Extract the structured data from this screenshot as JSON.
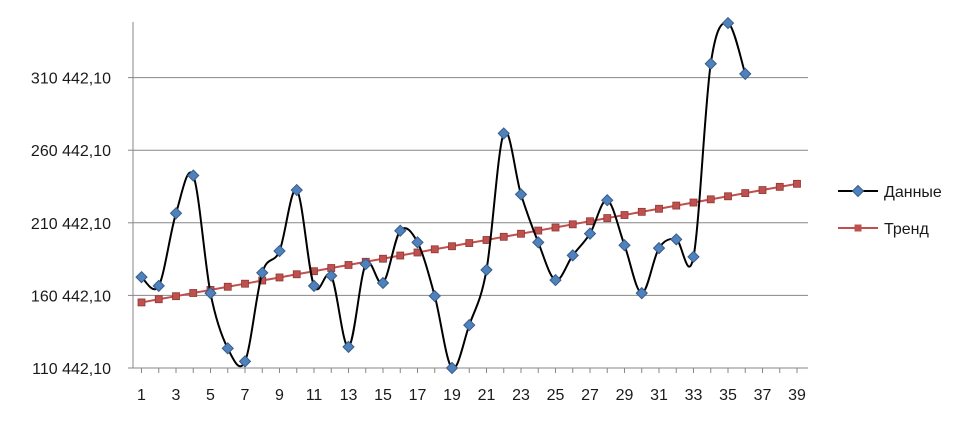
{
  "chart_data": {
    "type": "line",
    "title": "",
    "xlabel": "",
    "ylabel": "",
    "x_tick_labels": [
      "1",
      "3",
      "5",
      "7",
      "9",
      "11",
      "13",
      "15",
      "17",
      "19",
      "21",
      "23",
      "25",
      "27",
      "29",
      "31",
      "33",
      "35",
      "37",
      "39"
    ],
    "y_tick_labels": [
      "110 442,10",
      "160 442,10",
      "210 442,10",
      "260 442,10",
      "310 442,10"
    ],
    "y_tick_values": [
      110442.1,
      160442.1,
      210442.1,
      260442.1,
      310442.1
    ],
    "xlim": [
      1,
      39
    ],
    "ylim": [
      110442.1,
      349000
    ],
    "grid": true,
    "legend_position": "right",
    "series": [
      {
        "name": "Данные",
        "color": "#4f81bd",
        "marker": "diamond",
        "line": "smooth",
        "line_color": "#000000",
        "x": [
          1,
          2,
          3,
          4,
          5,
          6,
          7,
          8,
          9,
          10,
          11,
          12,
          13,
          14,
          15,
          16,
          17,
          18,
          19,
          20,
          21,
          22,
          23,
          24,
          25,
          26,
          27,
          28,
          29,
          30,
          31,
          32,
          33,
          34,
          35,
          36
        ],
        "values": [
          173000,
          167000,
          217000,
          243000,
          162000,
          124000,
          115000,
          176000,
          191000,
          233000,
          167000,
          174000,
          125000,
          182000,
          169000,
          205000,
          197000,
          160000,
          110442,
          140000,
          178000,
          272000,
          230000,
          197000,
          171000,
          188000,
          203000,
          226000,
          195000,
          162000,
          193000,
          199000,
          187000,
          320000,
          348000,
          313000
        ]
      },
      {
        "name": "Тренд",
        "color": "#c0504d",
        "marker": "square",
        "line": "straight",
        "x": [
          1,
          2,
          3,
          4,
          5,
          6,
          7,
          8,
          9,
          10,
          11,
          12,
          13,
          14,
          15,
          16,
          17,
          18,
          19,
          20,
          21,
          22,
          23,
          24,
          25,
          26,
          27,
          28,
          29,
          30,
          31,
          32,
          33,
          34,
          35,
          36,
          37,
          38,
          39
        ],
        "values": [
          155600,
          157800,
          159900,
          162100,
          164200,
          166400,
          168500,
          170700,
          172800,
          175000,
          177100,
          179300,
          181400,
          183600,
          185700,
          187900,
          190000,
          192200,
          194300,
          196500,
          198600,
          200800,
          202900,
          205100,
          207200,
          209400,
          211500,
          213700,
          215800,
          218000,
          220100,
          222300,
          224400,
          226600,
          228700,
          230900,
          233000,
          235200,
          237300
        ]
      }
    ]
  }
}
